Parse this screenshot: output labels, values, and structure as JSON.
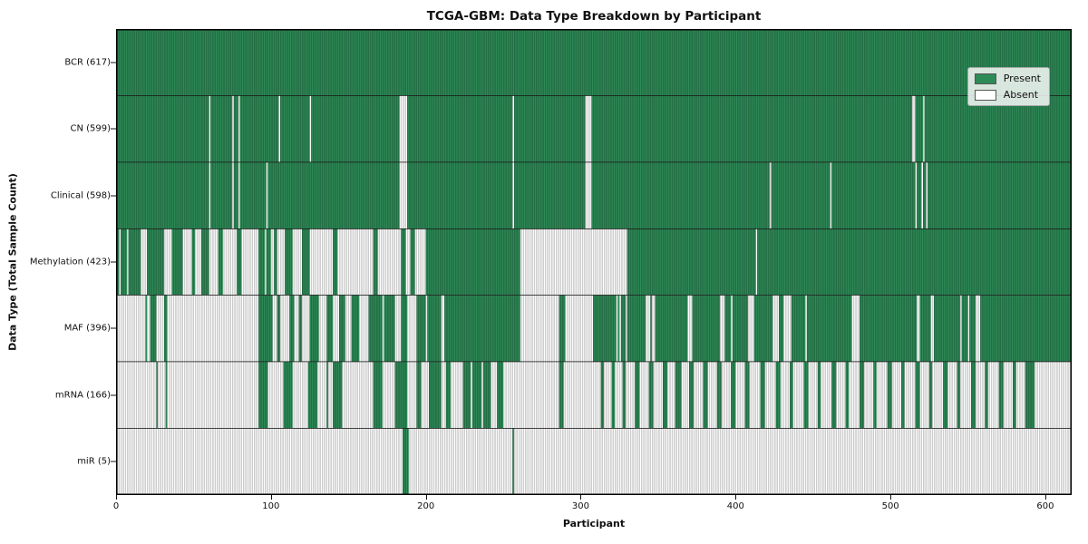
{
  "title": "TCGA-GBM: Data Type Breakdown by Participant",
  "x_axis": {
    "label": "Participant",
    "ticks": [
      0,
      100,
      200,
      300,
      400,
      500,
      600
    ]
  },
  "y_axis": {
    "label": "Data Type (Total Sample Count)"
  },
  "legend": {
    "items": [
      {
        "label": "Present",
        "color": "#2e8b57"
      },
      {
        "label": "Absent",
        "color": "#ffffff"
      }
    ]
  },
  "colors": {
    "present_fill": "#2e8b57",
    "present_edge": "#1c5737",
    "absent_fill": "#ffffff",
    "absent_edge": "#a3a3a3",
    "row_separator": "#1a1a1a",
    "plot_border": "#000000"
  },
  "chart_data": {
    "type": "heatmap",
    "title": "TCGA-GBM: Data Type Breakdown by Participant",
    "xlabel": "Participant",
    "ylabel": "Data Type (Total Sample Count)",
    "n_participants": 617,
    "xlim": [
      0,
      617
    ],
    "x_ticks": [
      0,
      100,
      200,
      300,
      400,
      500,
      600
    ],
    "legend_position": "upper right",
    "states": [
      "Present",
      "Absent"
    ],
    "rows": [
      {
        "name": "BCR",
        "label": "BCR (617)",
        "present_count": 617,
        "default": "present",
        "absent_ranges": []
      },
      {
        "name": "CN",
        "label": "CN (599)",
        "present_count": 599,
        "default": "present",
        "absent_ranges": [
          [
            60,
            60
          ],
          [
            75,
            75
          ],
          [
            79,
            79
          ],
          [
            105,
            105
          ],
          [
            125,
            125
          ],
          [
            183,
            187
          ],
          [
            256,
            256
          ],
          [
            303,
            306
          ],
          [
            514,
            515
          ],
          [
            521,
            521
          ]
        ]
      },
      {
        "name": "Clinical",
        "label": "Clinical (598)",
        "present_count": 598,
        "default": "present",
        "absent_ranges": [
          [
            60,
            60
          ],
          [
            75,
            75
          ],
          [
            79,
            79
          ],
          [
            97,
            97
          ],
          [
            183,
            187
          ],
          [
            256,
            256
          ],
          [
            303,
            306
          ],
          [
            422,
            422
          ],
          [
            461,
            461
          ],
          [
            516,
            516
          ],
          [
            520,
            520
          ],
          [
            523,
            523
          ]
        ]
      },
      {
        "name": "Methylation",
        "label": "Methylation (423)",
        "present_count": 423,
        "default": "present",
        "absent_ranges": [
          [
            2,
            2
          ],
          [
            7,
            7
          ],
          [
            16,
            19
          ],
          [
            31,
            35
          ],
          [
            43,
            48
          ],
          [
            51,
            54
          ],
          [
            60,
            65
          ],
          [
            69,
            77
          ],
          [
            81,
            91
          ],
          [
            96,
            96
          ],
          [
            100,
            101
          ],
          [
            104,
            108
          ],
          [
            114,
            119
          ],
          [
            125,
            139
          ],
          [
            143,
            165
          ],
          [
            169,
            183
          ],
          [
            187,
            189
          ],
          [
            193,
            199
          ],
          [
            261,
            329
          ],
          [
            413,
            413
          ]
        ]
      },
      {
        "name": "MAF",
        "label": "MAF (396)",
        "present_count": 396,
        "default": "present",
        "absent_ranges": [
          [
            0,
            18
          ],
          [
            20,
            21
          ],
          [
            26,
            30
          ],
          [
            33,
            91
          ],
          [
            101,
            103
          ],
          [
            106,
            111
          ],
          [
            115,
            117
          ],
          [
            120,
            124
          ],
          [
            131,
            135
          ],
          [
            140,
            143
          ],
          [
            148,
            151
          ],
          [
            157,
            162
          ],
          [
            172,
            172
          ],
          [
            180,
            183
          ],
          [
            188,
            193
          ],
          [
            200,
            200
          ],
          [
            210,
            211
          ],
          [
            261,
            285
          ],
          [
            290,
            307
          ],
          [
            323,
            323
          ],
          [
            325,
            325
          ],
          [
            329,
            329
          ],
          [
            342,
            344
          ],
          [
            346,
            347
          ],
          [
            369,
            371
          ],
          [
            390,
            392
          ],
          [
            397,
            397
          ],
          [
            408,
            411
          ],
          [
            424,
            427
          ],
          [
            431,
            435
          ],
          [
            445,
            445
          ],
          [
            475,
            479
          ],
          [
            517,
            518
          ],
          [
            526,
            527
          ],
          [
            545,
            545
          ],
          [
            550,
            550
          ],
          [
            555,
            557
          ]
        ]
      },
      {
        "name": "mRNA",
        "label": "mRNA (166)",
        "present_count": 166,
        "default": "absent",
        "present_ranges": [
          [
            26,
            26
          ],
          [
            32,
            32
          ],
          [
            92,
            97
          ],
          [
            108,
            113
          ],
          [
            124,
            129
          ],
          [
            136,
            136
          ],
          [
            140,
            145
          ],
          [
            166,
            171
          ],
          [
            180,
            187
          ],
          [
            194,
            196
          ],
          [
            202,
            209
          ],
          [
            213,
            215
          ],
          [
            224,
            228
          ],
          [
            230,
            235
          ],
          [
            237,
            241
          ],
          [
            246,
            249
          ],
          [
            286,
            288
          ],
          [
            313,
            314
          ],
          [
            320,
            321
          ],
          [
            327,
            328
          ],
          [
            335,
            337
          ],
          [
            344,
            346
          ],
          [
            353,
            355
          ],
          [
            361,
            364
          ],
          [
            370,
            372
          ],
          [
            379,
            381
          ],
          [
            388,
            390
          ],
          [
            397,
            399
          ],
          [
            406,
            408
          ],
          [
            416,
            418
          ],
          [
            426,
            428
          ],
          [
            435,
            436
          ],
          [
            444,
            446
          ],
          [
            453,
            454
          ],
          [
            462,
            464
          ],
          [
            471,
            472
          ],
          [
            480,
            482
          ],
          [
            489,
            490
          ],
          [
            498,
            500
          ],
          [
            507,
            508
          ],
          [
            516,
            518
          ],
          [
            525,
            526
          ],
          [
            534,
            536
          ],
          [
            543,
            544
          ],
          [
            552,
            554
          ],
          [
            561,
            562
          ],
          [
            570,
            572
          ],
          [
            579,
            580
          ],
          [
            587,
            592
          ]
        ]
      },
      {
        "name": "miR",
        "label": "miR (5)",
        "present_count": 5,
        "default": "absent",
        "present_ranges": [
          [
            185,
            188
          ],
          [
            256,
            256
          ]
        ]
      }
    ]
  }
}
